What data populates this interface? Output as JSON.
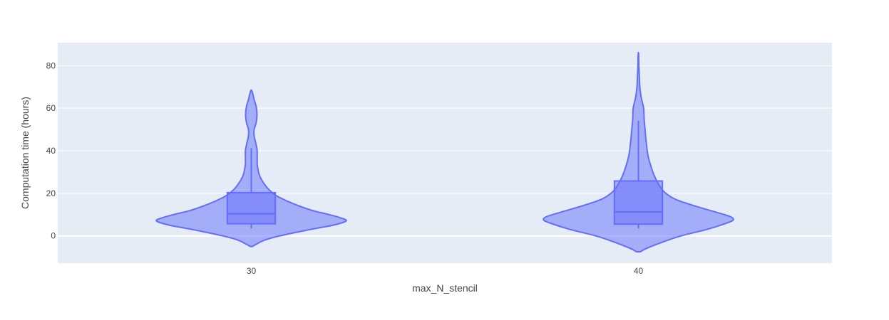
{
  "chart_data": {
    "type": "violin",
    "xlabel": "max_N_stencil",
    "ylabel": "Computation time (hours)",
    "categories": [
      "30",
      "40"
    ],
    "ylim": [
      -12.8,
      90.8
    ],
    "yticks": [
      0,
      20,
      40,
      60,
      80
    ],
    "grid": true,
    "legend": "none",
    "colors": {
      "plot_bg": "#e5ecf6",
      "grid": "#ffffff",
      "violin_fill": "#636efa",
      "violin_line": "#636efa"
    },
    "series": [
      {
        "category": "30",
        "min": 3.5,
        "q1": 5.7,
        "median": 10.4,
        "q3": 20.3,
        "whisker_high": 41.2,
        "kde_range": [
          -5,
          68.3
        ],
        "density_profile": [
          [
            -5,
            0.01
          ],
          [
            -4,
            0.05
          ],
          [
            -2,
            0.14
          ],
          [
            0,
            0.3
          ],
          [
            3,
            0.62
          ],
          [
            5,
            0.86
          ],
          [
            7,
            1.0
          ],
          [
            8.5,
            0.94
          ],
          [
            10,
            0.82
          ],
          [
            12,
            0.64
          ],
          [
            15,
            0.45
          ],
          [
            18,
            0.3
          ],
          [
            20,
            0.23
          ],
          [
            23,
            0.16
          ],
          [
            28,
            0.09
          ],
          [
            33,
            0.064
          ],
          [
            36,
            0.062
          ],
          [
            40,
            0.062
          ],
          [
            43,
            0.05
          ],
          [
            47,
            0.03
          ],
          [
            50,
            0.03
          ],
          [
            53,
            0.05
          ],
          [
            57,
            0.06
          ],
          [
            61,
            0.05
          ],
          [
            64,
            0.03
          ],
          [
            66,
            0.02
          ],
          [
            68.3,
            0.005
          ]
        ]
      },
      {
        "category": "40",
        "min": 3.5,
        "q1": 5.5,
        "median": 11.2,
        "q3": 25.8,
        "whisker_high": 54.1,
        "kde_range": [
          -7.5,
          85.5
        ],
        "density_profile": [
          [
            -7.5,
            0.02
          ],
          [
            -6,
            0.08
          ],
          [
            -3,
            0.25
          ],
          [
            0,
            0.45
          ],
          [
            3,
            0.72
          ],
          [
            6,
            0.93
          ],
          [
            7.5,
            1.0
          ],
          [
            9,
            0.97
          ],
          [
            11,
            0.83
          ],
          [
            14,
            0.6
          ],
          [
            17,
            0.4
          ],
          [
            20,
            0.29
          ],
          [
            23,
            0.23
          ],
          [
            28,
            0.17
          ],
          [
            33,
            0.13
          ],
          [
            38,
            0.1
          ],
          [
            45,
            0.08
          ],
          [
            50,
            0.07
          ],
          [
            55,
            0.06
          ],
          [
            60,
            0.055
          ],
          [
            65,
            0.03
          ],
          [
            70,
            0.015
          ],
          [
            75,
            0.01
          ],
          [
            80,
            0.005
          ],
          [
            85.5,
            0.002
          ]
        ]
      }
    ]
  }
}
